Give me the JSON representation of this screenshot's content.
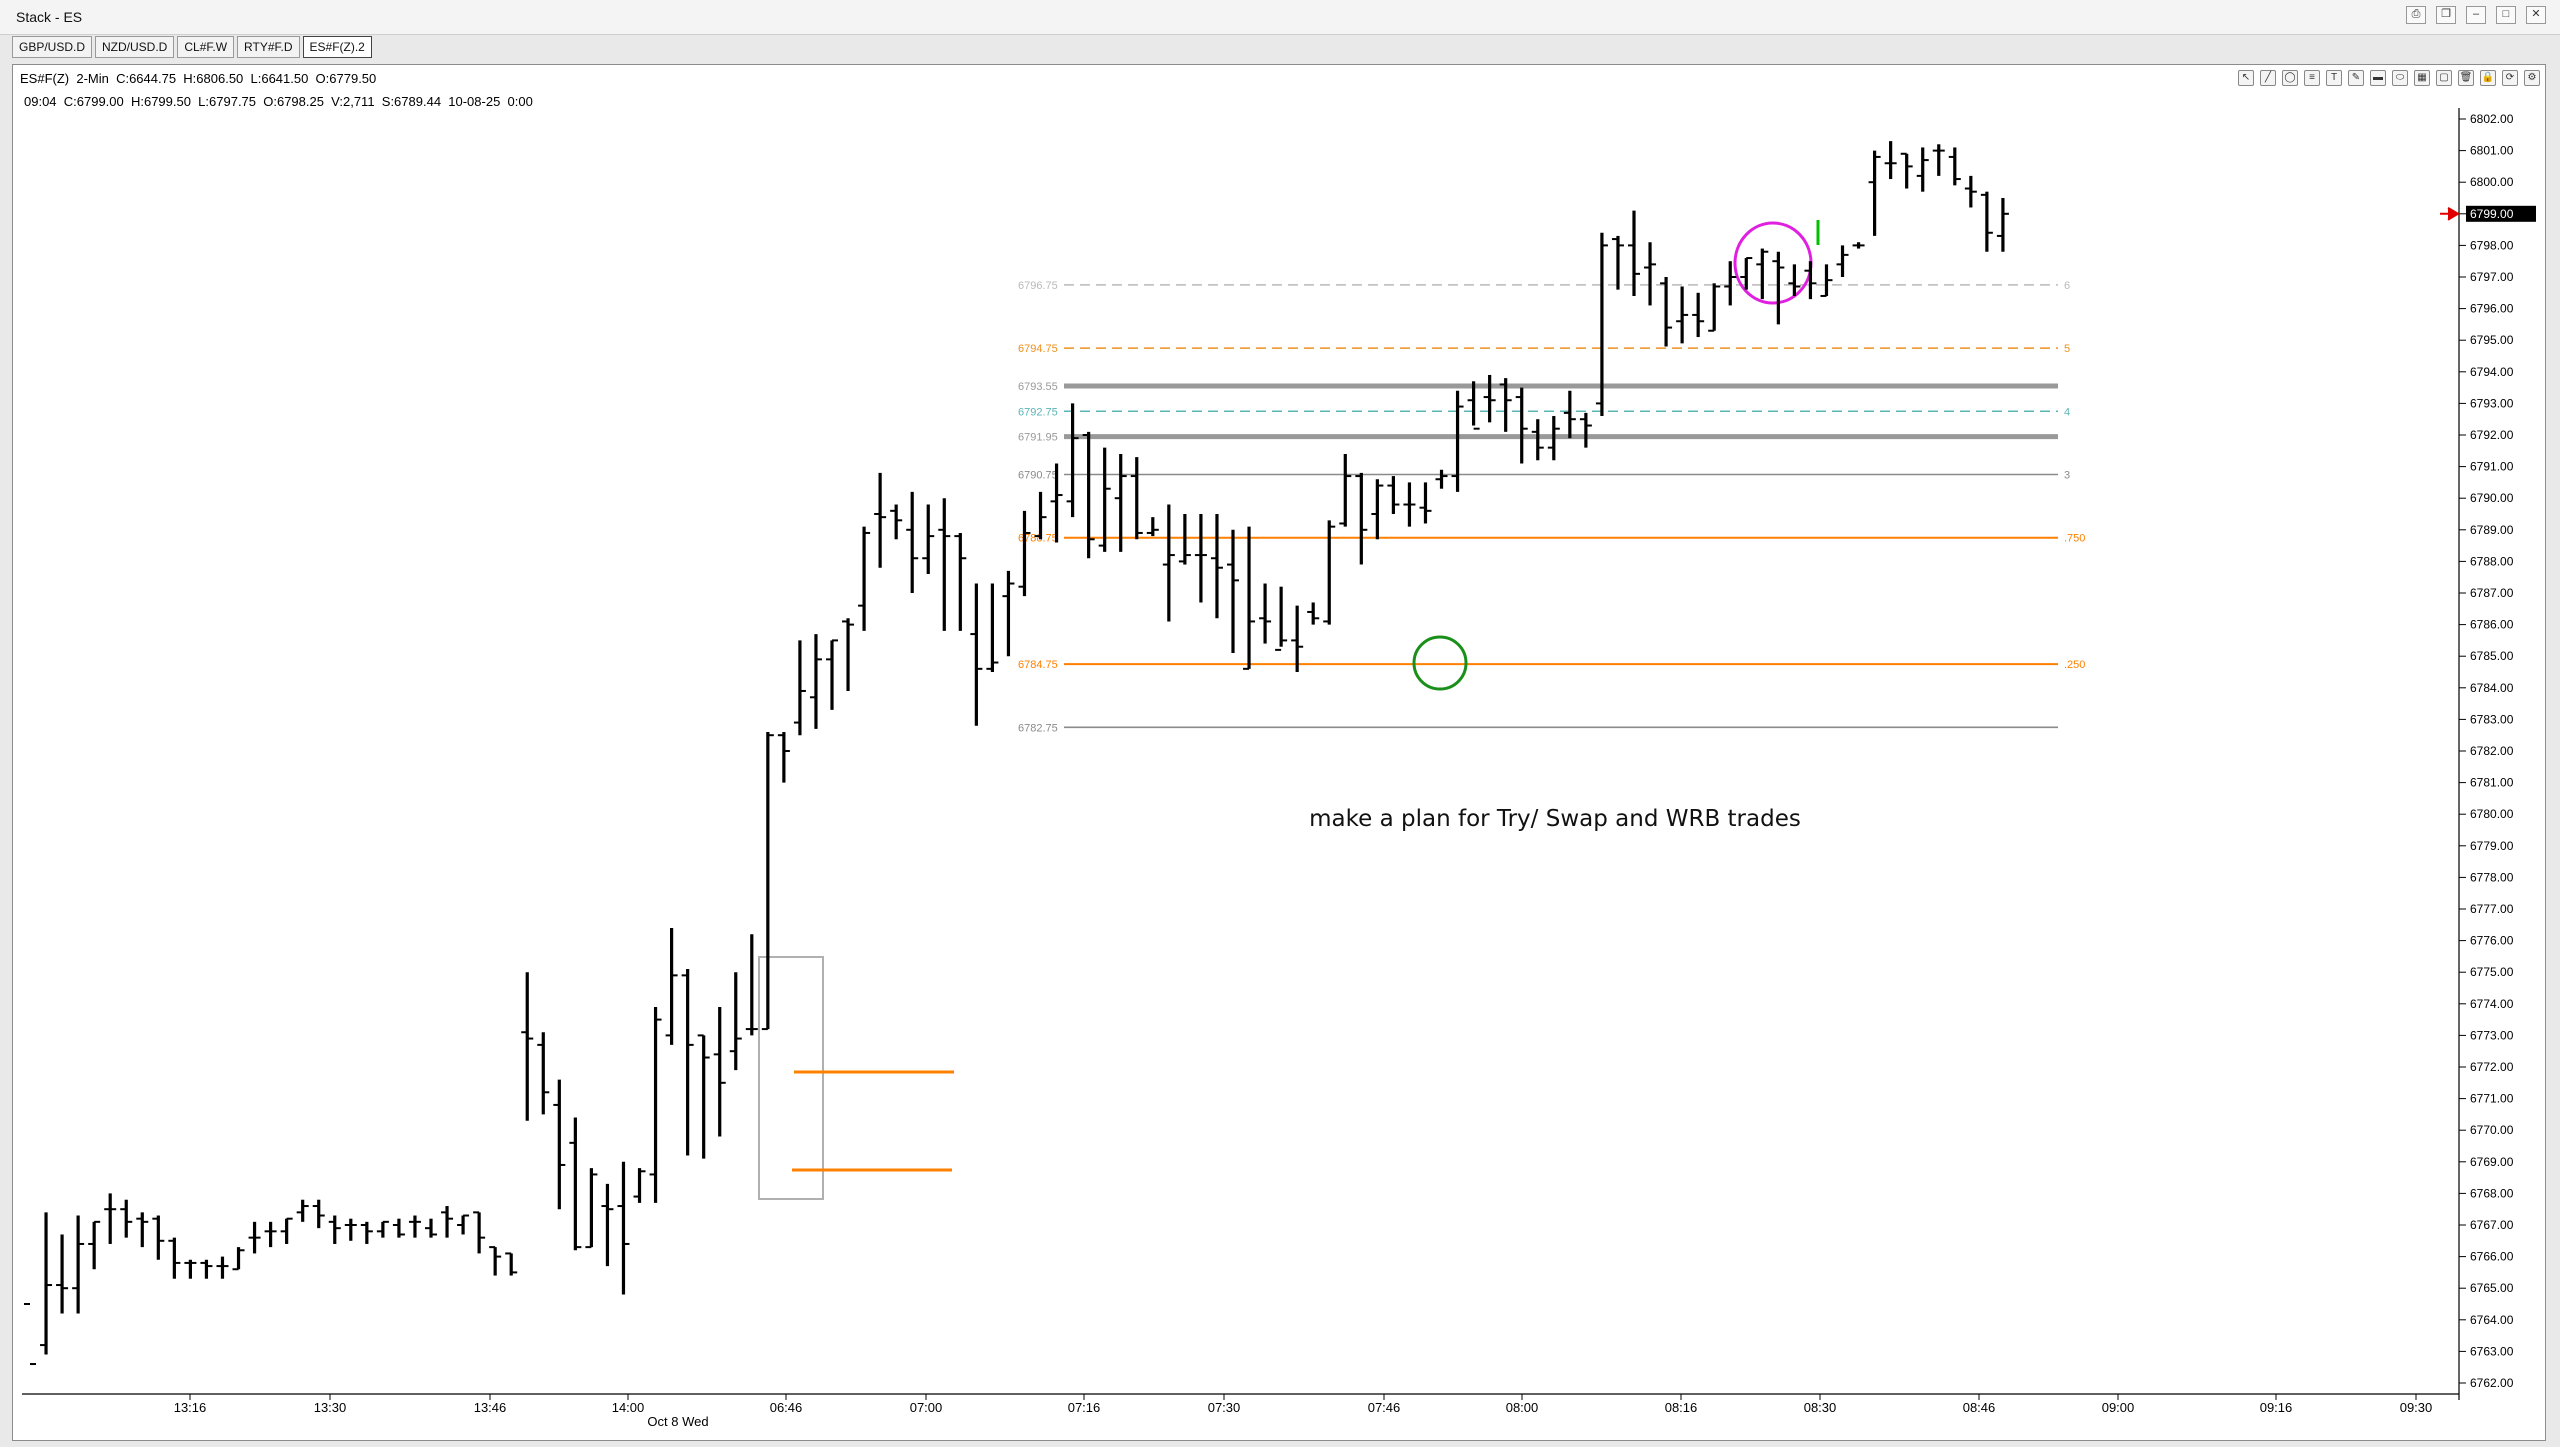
{
  "window": {
    "title": "Stack - ES"
  },
  "tabs": [
    {
      "label": "GBP/USD.D",
      "active": false
    },
    {
      "label": "NZD/USD.D",
      "active": false
    },
    {
      "label": "CL#F.W",
      "active": false
    },
    {
      "label": "RTY#F.D",
      "active": false
    },
    {
      "label": "ES#F(Z).2",
      "active": true
    }
  ],
  "info": {
    "line1": "ES#F(Z)  2-Min  C:6644.75  H:6806.50  L:6641.50  O:6779.50",
    "line2": "09:04  C:6799.00  H:6799.50  L:6797.75  O:6798.25  V:2,711  S:6789.44  10-08-25  0:00"
  },
  "toolbar_icons": [
    "arrow-tool-icon",
    "line-tool-icon",
    "circle-tool-icon",
    "fib-tool-icon",
    "text-tool-icon",
    "pen-tool-icon",
    "marker-tool-icon",
    "ellipse-tool-icon",
    "grid-tool-icon",
    "box-tool-icon",
    "trash-icon",
    "lock-icon",
    "sync-icon",
    "settings-icon"
  ],
  "chart_data": {
    "type": "ohlc",
    "annotation": "make a plan for Try/ Swap and WRB trades",
    "last_price": "6799.00",
    "y_ticks": [
      "6802.00",
      "6801.00",
      "6800.00",
      "6799.00",
      "6798.00",
      "6797.00",
      "6796.00",
      "6795.00",
      "6794.00",
      "6793.00",
      "6792.00",
      "6791.00",
      "6790.00",
      "6789.00",
      "6788.00",
      "6787.00",
      "6786.00",
      "6785.00",
      "6784.00",
      "6783.00",
      "6782.00",
      "6781.00",
      "6780.00",
      "6779.00",
      "6778.00",
      "6777.00",
      "6776.00",
      "6775.00",
      "6774.00",
      "6773.00",
      "6772.00",
      "6771.00",
      "6770.00",
      "6769.00",
      "6768.00",
      "6767.00",
      "6766.00",
      "6765.00",
      "6764.00",
      "6763.00",
      "6762.00"
    ],
    "x_ticks": [
      "13:16",
      "13:30",
      "13:46",
      "14:00",
      "06:46",
      "07:00",
      "07:16",
      "07:30",
      "07:46",
      "08:00",
      "08:16",
      "08:30",
      "08:46",
      "09:00",
      "09:16",
      "09:30"
    ],
    "x_sublabel": "Oct 8 Wed",
    "levels": [
      {
        "label": "6796.75",
        "price": 6796.75,
        "style": "dashed",
        "color": "#b9b9b9",
        "right_label": "6"
      },
      {
        "label": "6794.75",
        "price": 6794.75,
        "style": "dashed",
        "color": "#f0901c",
        "right_label": "5"
      },
      {
        "label": "6793.55",
        "price": 6793.55,
        "style": "thick",
        "color": "#999999",
        "right_label": ""
      },
      {
        "label": "6792.75",
        "price": 6792.75,
        "style": "dashed",
        "color": "#5bb5b5",
        "right_label": "4"
      },
      {
        "label": "6791.95",
        "price": 6791.95,
        "style": "thick",
        "color": "#999999",
        "right_label": ""
      },
      {
        "label": "6790.75",
        "price": 6790.75,
        "style": "solid",
        "color": "#8a8a8a",
        "right_label": "3"
      },
      {
        "label": "6788.75",
        "price": 6788.75,
        "style": "solid",
        "color": "#ff8000",
        "right_label": ".750"
      },
      {
        "label": "6784.75",
        "price": 6784.75,
        "style": "solid",
        "color": "#ff8000",
        "right_label": ".250"
      },
      {
        "label": "6782.75",
        "price": 6782.75,
        "style": "solid",
        "color": "#8a8a8a",
        "right_label": ""
      }
    ],
    "bars": [
      [
        6764.5,
        6762.1,
        6762.1,
        6762.6
      ],
      [
        6763.2,
        6767.4,
        6762.9,
        6765.1
      ],
      [
        6765.1,
        6766.7,
        6764.2,
        6765.0
      ],
      [
        6765.0,
        6767.3,
        6764.2,
        6766.4
      ],
      [
        6766.4,
        6767.1,
        6765.6,
        6767.1
      ],
      [
        6767.5,
        6768.0,
        6766.4,
        6767.5
      ],
      [
        6767.5,
        6767.8,
        6766.6,
        6767.1
      ],
      [
        6767.2,
        6767.4,
        6766.3,
        6767.1
      ],
      [
        6767.2,
        6767.3,
        6765.9,
        6766.5
      ],
      [
        6766.5,
        6766.6,
        6765.3,
        6765.8
      ],
      [
        6765.8,
        6765.9,
        6765.3,
        6765.8
      ],
      [
        6765.8,
        6765.9,
        6765.3,
        6765.7
      ],
      [
        6765.7,
        6766.0,
        6765.3,
        6765.7
      ],
      [
        6765.6,
        6766.3,
        6765.6,
        6766.2
      ],
      [
        6766.6,
        6767.1,
        6766.1,
        6766.6
      ],
      [
        6766.8,
        6767.1,
        6766.3,
        6766.8
      ],
      [
        6766.8,
        6767.2,
        6766.4,
        6767.2
      ],
      [
        6767.4,
        6767.8,
        6767.1,
        6767.6
      ],
      [
        6767.6,
        6767.8,
        6766.9,
        6767.3
      ],
      [
        6767.1,
        6767.3,
        6766.4,
        6766.9
      ],
      [
        6767.0,
        6767.2,
        6766.5,
        6767.0
      ],
      [
        6767.0,
        6767.1,
        6766.4,
        6766.8
      ],
      [
        6766.8,
        6767.1,
        6766.6,
        6767.1
      ],
      [
        6767.0,
        6767.2,
        6766.6,
        6766.7
      ],
      [
        6767.1,
        6767.3,
        6766.6,
        6767.1
      ],
      [
        6766.9,
        6767.2,
        6766.6,
        6766.7
      ],
      [
        6767.4,
        6767.6,
        6766.6,
        6767.2
      ],
      [
        6767.0,
        6767.3,
        6766.7,
        6767.3
      ],
      [
        6767.4,
        6767.4,
        6766.1,
        6766.6
      ],
      [
        6766.3,
        6766.3,
        6765.4,
        6766.0
      ],
      [
        6766.1,
        6766.1,
        6765.4,
        6765.5
      ],
      [
        6773.1,
        6775.0,
        6770.3,
        6772.9
      ],
      [
        6772.7,
        6773.1,
        6770.5,
        6771.2
      ],
      [
        6770.8,
        6771.6,
        6767.5,
        6768.9
      ],
      [
        6769.6,
        6770.4,
        6766.2,
        6766.3
      ],
      [
        6766.3,
        6768.8,
        6766.3,
        6768.6
      ],
      [
        6767.6,
        6768.3,
        6765.7,
        6767.5
      ],
      [
        6767.6,
        6769.0,
        6764.8,
        6766.4
      ],
      [
        6767.9,
        6768.8,
        6767.7,
        6768.7
      ],
      [
        6768.6,
        6773.9,
        6767.7,
        6773.5
      ],
      [
        6773.0,
        6776.4,
        6772.7,
        6774.9
      ],
      [
        6774.9,
        6775.1,
        6769.2,
        6772.7
      ],
      [
        6773.0,
        6773.0,
        6769.1,
        6772.3
      ],
      [
        6772.4,
        6773.9,
        6769.8,
        6771.5
      ],
      [
        6772.5,
        6775.0,
        6771.9,
        6772.9
      ],
      [
        6773.2,
        6776.2,
        6773.0,
        6773.2
      ],
      [
        6773.2,
        6782.6,
        6773.2,
        6782.5
      ],
      [
        6782.5,
        6782.6,
        6781.0,
        6782.0
      ],
      [
        6782.9,
        6785.5,
        6782.5,
        6783.9
      ],
      [
        6783.7,
        6785.7,
        6782.7,
        6784.9
      ],
      [
        6784.9,
        6785.5,
        6783.3,
        6785.5
      ],
      [
        6786.1,
        6786.2,
        6783.9,
        6786.0
      ],
      [
        6786.6,
        6789.1,
        6785.8,
        6788.9
      ],
      [
        6789.5,
        6790.8,
        6787.8,
        6789.4
      ],
      [
        6789.6,
        6789.8,
        6788.7,
        6789.3
      ],
      [
        6789.0,
        6790.2,
        6787.0,
        6788.1
      ],
      [
        6788.1,
        6789.8,
        6787.6,
        6788.8
      ],
      [
        6789.0,
        6790.0,
        6785.8,
        6788.8
      ],
      [
        6788.8,
        6788.9,
        6785.8,
        6788.1
      ],
      [
        6785.7,
        6787.3,
        6782.8,
        6784.6
      ],
      [
        6784.6,
        6787.3,
        6784.5,
        6784.8
      ],
      [
        6786.9,
        6787.7,
        6785.0,
        6787.3
      ],
      [
        6787.2,
        6789.6,
        6786.9,
        6788.9
      ],
      [
        6788.8,
        6790.2,
        6788.7,
        6789.4
      ],
      [
        6789.9,
        6791.1,
        6788.6,
        6790.1
      ],
      [
        6789.9,
        6793.0,
        6789.4,
        6791.9
      ],
      [
        6792.0,
        6792.1,
        6788.1,
        6788.7
      ],
      [
        6788.5,
        6791.6,
        6788.3,
        6790.3
      ],
      [
        6790.0,
        6791.4,
        6788.3,
        6790.7
      ],
      [
        6790.7,
        6791.3,
        6788.7,
        6788.9
      ],
      [
        6788.9,
        6789.4,
        6788.8,
        6789.0
      ],
      [
        6787.9,
        6789.8,
        6786.1,
        6788.2
      ],
      [
        6788.0,
        6789.5,
        6787.9,
        6788.2
      ],
      [
        6788.2,
        6789.5,
        6786.7,
        6788.2
      ],
      [
        6788.1,
        6789.5,
        6786.2,
        6787.8
      ],
      [
        6787.9,
        6789.0,
        6785.1,
        6787.4
      ],
      [
        6784.6,
        6789.1,
        6784.6,
        6786.1
      ],
      [
        6786.2,
        6787.3,
        6785.4,
        6786.1
      ],
      [
        6785.2,
        6787.2,
        6785.3,
        6785.5
      ],
      [
        6785.5,
        6786.6,
        6784.5,
        6785.3
      ],
      [
        6786.4,
        6786.7,
        6786.0,
        6786.2
      ],
      [
        6786.1,
        6789.3,
        6786.0,
        6789.1
      ],
      [
        6789.2,
        6791.4,
        6789.1,
        6790.7
      ],
      [
        6790.7,
        6790.8,
        6787.9,
        6789.0
      ],
      [
        6789.5,
        6790.6,
        6788.7,
        6790.4
      ],
      [
        6790.4,
        6790.7,
        6789.5,
        6789.8
      ],
      [
        6789.8,
        6790.5,
        6789.1,
        6789.8
      ],
      [
        6789.7,
        6790.5,
        6789.2,
        6789.6
      ],
      [
        6790.6,
        6790.9,
        6790.3,
        6790.7
      ],
      [
        6790.7,
        6793.4,
        6790.2,
        6792.9
      ],
      [
        6793.1,
        6793.7,
        6792.3,
        6792.2
      ],
      [
        6793.2,
        6793.9,
        6792.4,
        6793.1
      ],
      [
        6793.6,
        6793.8,
        6792.1,
        6793.1
      ],
      [
        6793.2,
        6793.5,
        6791.1,
        6792.2
      ],
      [
        6792.1,
        6792.5,
        6791.2,
        6791.6
      ],
      [
        6791.6,
        6792.6,
        6791.2,
        6792.2
      ],
      [
        6792.7,
        6793.4,
        6791.9,
        6792.5
      ],
      [
        6792.5,
        6792.7,
        6791.6,
        6792.3
      ],
      [
        6793.0,
        6798.4,
        6792.6,
        6798.0
      ],
      [
        6798.2,
        6798.3,
        6796.6,
        6798.0
      ],
      [
        6798.0,
        6799.1,
        6796.4,
        6797.1
      ],
      [
        6797.3,
        6798.1,
        6796.1,
        6797.4
      ],
      [
        6796.8,
        6797.0,
        6794.8,
        6795.4
      ],
      [
        6795.6,
        6796.7,
        6794.9,
        6795.8
      ],
      [
        6795.8,
        6796.5,
        6795.1,
        6795.6
      ],
      [
        6795.3,
        6796.8,
        6795.3,
        6796.7
      ],
      [
        6796.7,
        6797.5,
        6796.1,
        6797.0
      ],
      [
        6797.0,
        6797.6,
        6796.6,
        6797.6
      ],
      [
        6797.4,
        6797.9,
        6796.3,
        6797.8
      ],
      [
        6797.5,
        6797.8,
        6795.5,
        6797.3
      ],
      [
        6796.8,
        6797.4,
        6796.4,
        6796.7
      ],
      [
        6797.2,
        6797.5,
        6796.3,
        6796.8
      ],
      [
        6796.4,
        6797.4,
        6796.4,
        6796.9
      ],
      [
        6797.4,
        6798.0,
        6797.0,
        6797.7
      ],
      [
        6798.0,
        6798.1,
        6797.9,
        6798.0
      ],
      [
        6800.0,
        6801.0,
        6798.3,
        6800.8
      ],
      [
        6800.6,
        6801.3,
        6800.1,
        6800.6
      ],
      [
        6800.9,
        6800.9,
        6799.8,
        6800.5
      ],
      [
        6800.2,
        6801.1,
        6799.7,
        6800.7
      ],
      [
        6801.0,
        6801.2,
        6800.2,
        6801.0
      ],
      [
        6800.8,
        6801.1,
        6799.9,
        6800.1
      ],
      [
        6799.8,
        6800.2,
        6799.2,
        6799.7
      ],
      [
        6799.6,
        6799.7,
        6797.8,
        6798.4
      ],
      [
        6798.3,
        6799.5,
        6797.8,
        6799.0
      ]
    ]
  }
}
